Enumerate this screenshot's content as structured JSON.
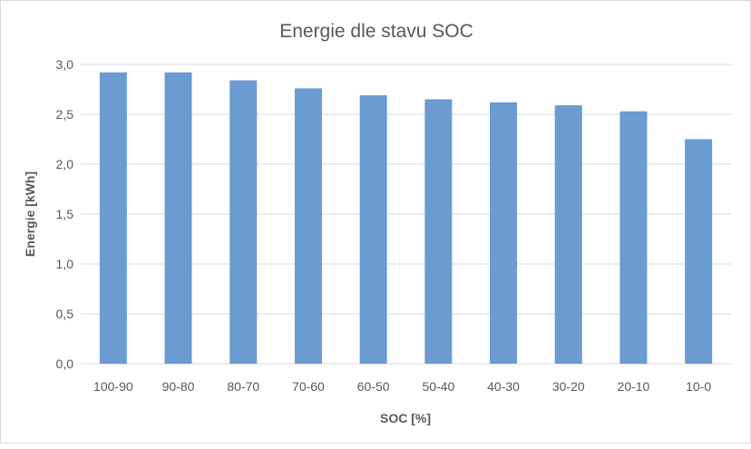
{
  "chart_data": {
    "type": "bar",
    "title": "Energie dle stavu SOC",
    "xlabel": "SOC [%]",
    "ylabel": "Energie [kWh]",
    "categories": [
      "100-90",
      "90-80",
      "80-70",
      "70-60",
      "60-50",
      "50-40",
      "40-30",
      "30-20",
      "20-10",
      "10-0"
    ],
    "values": [
      2.92,
      2.92,
      2.84,
      2.76,
      2.69,
      2.65,
      2.62,
      2.59,
      2.53,
      2.25
    ],
    "ylim": [
      0,
      3.0
    ],
    "yticks": [
      "0,0",
      "0,5",
      "1,0",
      "1,5",
      "2,0",
      "2,5",
      "3,0"
    ],
    "grid": true,
    "legend": "none",
    "bar_color": "#6a9bd1",
    "grid_color": "#d9d9d9"
  }
}
